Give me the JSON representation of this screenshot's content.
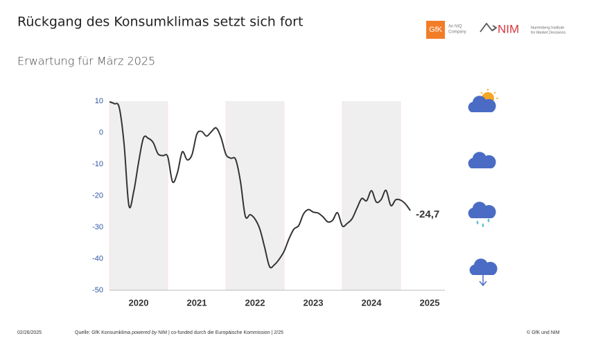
{
  "header": {
    "title": "Rückgang des Konsumklimas setzt sich fort",
    "subtitle": "Erwartung für März 2025"
  },
  "logos": {
    "gfk": "GfK",
    "gfk_tagline": [
      "An NIQ",
      "Company"
    ],
    "nim": "NIM",
    "nim_tagline": [
      "Nuremberg Institute",
      "for Market Decisions"
    ]
  },
  "chart_data": {
    "type": "line",
    "x": [
      2020.0,
      2020.083,
      2020.167,
      2020.25,
      2020.333,
      2020.417,
      2020.5,
      2020.583,
      2020.667,
      2020.75,
      2020.833,
      2020.917,
      2021.0,
      2021.083,
      2021.167,
      2021.25,
      2021.333,
      2021.417,
      2021.5,
      2021.583,
      2021.667,
      2021.75,
      2021.833,
      2021.917,
      2022.0,
      2022.083,
      2022.167,
      2022.25,
      2022.333,
      2022.417,
      2022.5,
      2022.583,
      2022.667,
      2022.75,
      2022.833,
      2022.917,
      2023.0,
      2023.083,
      2023.167,
      2023.25,
      2023.333,
      2023.417,
      2023.5,
      2023.583,
      2023.667,
      2023.75,
      2023.833,
      2023.917,
      2024.0,
      2024.083,
      2024.167,
      2024.25,
      2024.333,
      2024.417,
      2024.5,
      2024.583,
      2024.667,
      2024.75,
      2024.833,
      2024.917,
      2025.0,
      2025.083,
      2025.167
    ],
    "series": [
      {
        "name": "Konsumklima",
        "color": "#333333",
        "values": [
          9.8,
          9.2,
          8.0,
          -3.5,
          -23.1,
          -18.6,
          -9.4,
          -1.7,
          -1.8,
          -3.1,
          -6.7,
          -7.3,
          -7.6,
          -15.6,
          -12.7,
          -6.1,
          -8.6,
          -7.0,
          -0.5,
          0.4,
          -1.1,
          0.3,
          1.5,
          -1.6,
          -6.9,
          -8.1,
          -8.5,
          -15.5,
          -26.5,
          -26.0,
          -27.4,
          -30.6,
          -36.5,
          -42.5,
          -41.9,
          -40.1,
          -37.6,
          -33.7,
          -30.6,
          -29.5,
          -25.8,
          -24.4,
          -25.2,
          -25.5,
          -26.7,
          -28.3,
          -27.8,
          -25.4,
          -29.6,
          -28.8,
          -27.3,
          -24.0,
          -20.9,
          -21.6,
          -18.4,
          -22.0,
          -21.2,
          -18.3,
          -23.1,
          -21.3,
          -21.4,
          -22.6,
          -24.7
        ]
      }
    ],
    "last_value_label": {
      "value": -24.7,
      "label": "-24,7"
    },
    "xlim": [
      2020,
      2026
    ],
    "xticks": [
      {
        "value": 2020.5,
        "label": "2020"
      },
      {
        "value": 2021.5,
        "label": "2021"
      },
      {
        "value": 2022.5,
        "label": "2022"
      },
      {
        "value": 2023.5,
        "label": "2023"
      },
      {
        "value": 2024.5,
        "label": "2024"
      },
      {
        "value": 2025.5,
        "label": "2025"
      }
    ],
    "ylim": [
      -50,
      10
    ],
    "yticks": [
      10,
      0,
      -10,
      -20,
      -30,
      -40,
      -50
    ],
    "tick_color": "#2f55a4",
    "grid": false
  },
  "footer": {
    "date": "02/26/2025",
    "source": [
      "Quelle: GfK Konsumklima ",
      "powered by",
      " NIM | co-funded durch die Europäische Kommission | 2/25"
    ],
    "copyright": "© GfK und NIM"
  }
}
